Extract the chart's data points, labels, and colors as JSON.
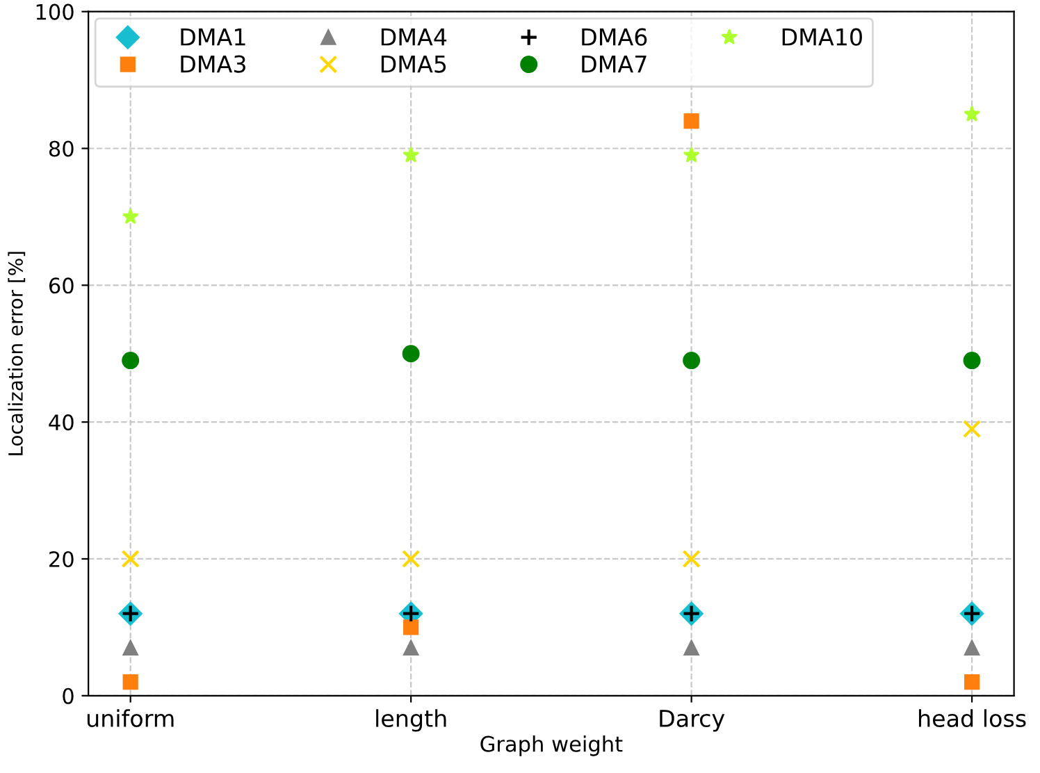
{
  "chart_data": {
    "type": "scatter",
    "xlabel": "Graph weight",
    "ylabel": "Localization error [%]",
    "categories": [
      "uniform",
      "length",
      "Darcy",
      "head loss"
    ],
    "series": [
      {
        "name": "DMA1",
        "color": "#17becf",
        "marker": "diamond",
        "values": [
          12,
          12,
          12,
          12
        ]
      },
      {
        "name": "DMA3",
        "color": "#ff7f0e",
        "marker": "square",
        "values": [
          2,
          10,
          84,
          2
        ]
      },
      {
        "name": "DMA4",
        "color": "#808080",
        "marker": "triangle",
        "values": [
          7,
          7,
          7,
          7
        ]
      },
      {
        "name": "DMA5",
        "color": "#ffd700",
        "marker": "cross",
        "values": [
          20,
          20,
          20,
          39
        ]
      },
      {
        "name": "DMA6",
        "color": "#000000",
        "marker": "plus",
        "values": [
          12,
          12,
          12,
          12
        ]
      },
      {
        "name": "DMA7",
        "color": "#008000",
        "marker": "circle",
        "values": [
          49,
          50,
          49,
          49
        ]
      },
      {
        "name": "DMA10",
        "color": "#adff2f",
        "marker": "star",
        "values": [
          70,
          79,
          79,
          85
        ]
      }
    ],
    "ylim": [
      0,
      100
    ],
    "yticks": [
      0,
      20,
      40,
      60,
      80,
      100
    ],
    "grid": true,
    "legend": "top left"
  }
}
